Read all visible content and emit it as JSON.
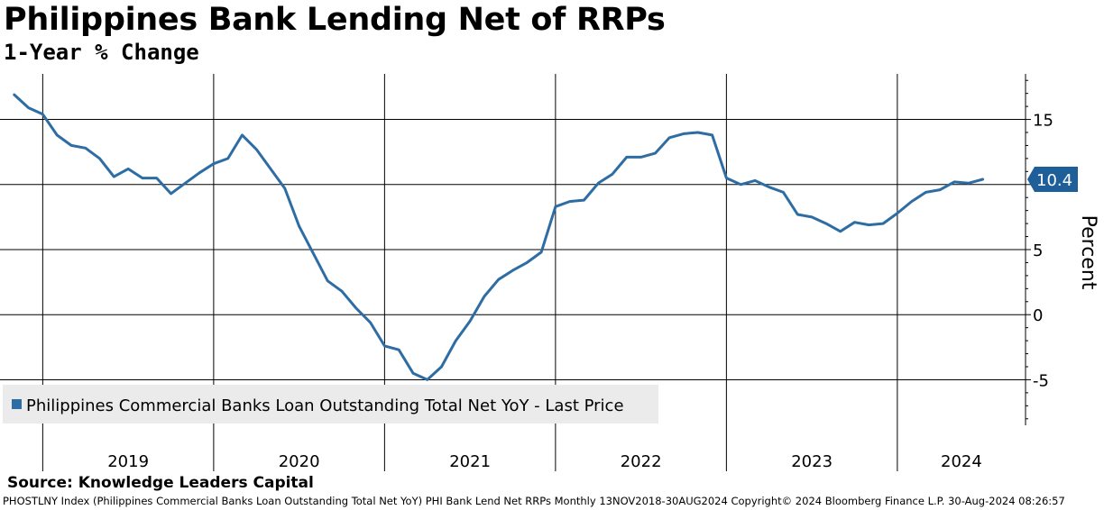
{
  "title": "Philippines Bank Lending Net of RRPs",
  "subtitle": "1-Year % Change",
  "source": "Source: Knowledge Leaders Capital",
  "footer": "PHOSTLNY Index (Philippines Commercial Banks Loan Outstanding Total Net YoY) PHI Bank Lend Net RRPs  Monthly 13NOV2018-30AUG2024  Copyright© 2024 Bloomberg Finance L.P.  30-Aug-2024 08:26:57",
  "colors": {
    "line": "#2e6da4",
    "badge": "#1f5f99",
    "legend_bg": "#ebebeb"
  },
  "chart_data": {
    "type": "line",
    "title": "Philippines Bank Lending Net of RRPs",
    "subtitle": "1-Year % Change",
    "xlabel": "",
    "ylabel": "Percent",
    "ylim": [
      -8.5,
      18.5
    ],
    "yticks": [
      15,
      10,
      5,
      0,
      -5
    ],
    "xticks": [
      "2019",
      "2020",
      "2021",
      "2022",
      "2023",
      "2024"
    ],
    "xlim": [
      "2018-10",
      "2024-10"
    ],
    "legend": "Philippines Commercial Banks Loan Outstanding Total Net YoY - Last Price",
    "legend_position": "bottom-left",
    "last_value_label": "10.4",
    "series": [
      {
        "name": "Philippines Commercial Banks Loan Outstanding Total Net YoY",
        "x": [
          "2018-11",
          "2018-12",
          "2019-01",
          "2019-02",
          "2019-03",
          "2019-04",
          "2019-05",
          "2019-06",
          "2019-07",
          "2019-08",
          "2019-09",
          "2019-10",
          "2019-11",
          "2019-12",
          "2020-01",
          "2020-02",
          "2020-03",
          "2020-04",
          "2020-05",
          "2020-06",
          "2020-07",
          "2020-08",
          "2020-09",
          "2020-10",
          "2020-11",
          "2020-12",
          "2021-01",
          "2021-02",
          "2021-03",
          "2021-04",
          "2021-05",
          "2021-06",
          "2021-07",
          "2021-08",
          "2021-09",
          "2021-10",
          "2021-11",
          "2021-12",
          "2022-01",
          "2022-02",
          "2022-03",
          "2022-04",
          "2022-05",
          "2022-06",
          "2022-07",
          "2022-08",
          "2022-09",
          "2022-10",
          "2022-11",
          "2022-12",
          "2023-01",
          "2023-02",
          "2023-03",
          "2023-04",
          "2023-05",
          "2023-06",
          "2023-07",
          "2023-08",
          "2023-09",
          "2023-10",
          "2023-11",
          "2023-12",
          "2024-01",
          "2024-02",
          "2024-03",
          "2024-04",
          "2024-05",
          "2024-06",
          "2024-07"
        ],
        "values": [
          16.9,
          15.9,
          15.4,
          13.8,
          13.0,
          12.8,
          12.0,
          10.6,
          11.2,
          10.5,
          10.5,
          9.3,
          10.1,
          10.9,
          11.6,
          12.0,
          13.8,
          12.7,
          11.2,
          9.7,
          6.8,
          4.7,
          2.6,
          1.8,
          0.5,
          -0.6,
          -2.4,
          -2.7,
          -4.5,
          -5.0,
          -4.0,
          -2.0,
          -0.5,
          1.4,
          2.7,
          3.4,
          4.0,
          4.8,
          8.3,
          8.7,
          8.8,
          10.1,
          10.8,
          12.1,
          12.1,
          12.4,
          13.6,
          13.9,
          14.0,
          13.8,
          10.5,
          10.0,
          10.3,
          9.8,
          9.4,
          7.7,
          7.5,
          7.0,
          6.4,
          7.1,
          6.9,
          7.0,
          7.8,
          8.7,
          9.4,
          9.6,
          10.2,
          10.1,
          10.4
        ]
      }
    ]
  }
}
